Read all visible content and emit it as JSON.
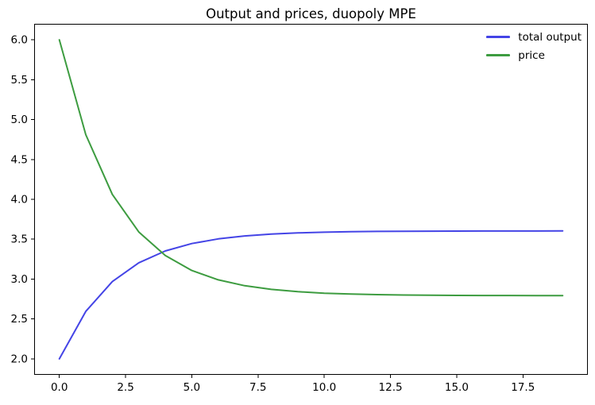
{
  "figure": {
    "background": "#ffffff"
  },
  "chart_data": {
    "type": "line",
    "title": "Output and prices, duopoly MPE",
    "xlabel": "",
    "ylabel": "",
    "x": [
      0,
      1,
      2,
      3,
      4,
      5,
      6,
      7,
      8,
      9,
      10,
      11,
      12,
      13,
      14,
      15,
      16,
      17,
      18,
      19
    ],
    "series": [
      {
        "name": "total output",
        "color": "#4444e6",
        "linewidth": 2,
        "values": [
          2.0,
          2.595,
          2.969,
          3.205,
          3.353,
          3.446,
          3.504,
          3.541,
          3.565,
          3.579,
          3.588,
          3.594,
          3.598,
          3.6,
          3.601,
          3.602,
          3.603,
          3.603,
          3.603,
          3.604
        ]
      },
      {
        "name": "price",
        "color": "#3d9c40",
        "linewidth": 2,
        "values": [
          6.0,
          4.81,
          4.062,
          3.591,
          3.295,
          3.108,
          2.991,
          2.917,
          2.871,
          2.842,
          2.823,
          2.812,
          2.805,
          2.8,
          2.797,
          2.795,
          2.794,
          2.794,
          2.793,
          2.793
        ]
      }
    ],
    "xlim": [
      -0.95,
      19.95
    ],
    "ylim": [
      1.8,
      6.2
    ],
    "xticks": [
      "0.0",
      "2.5",
      "5.0",
      "7.5",
      "10.0",
      "12.5",
      "15.0",
      "17.5"
    ],
    "yticks": [
      "2.0",
      "2.5",
      "3.0",
      "3.5",
      "4.0",
      "4.5",
      "5.0",
      "5.5",
      "6.0"
    ],
    "grid": false,
    "legend": {
      "location": "upper right",
      "frame": false
    },
    "axis_color": "#000000"
  }
}
